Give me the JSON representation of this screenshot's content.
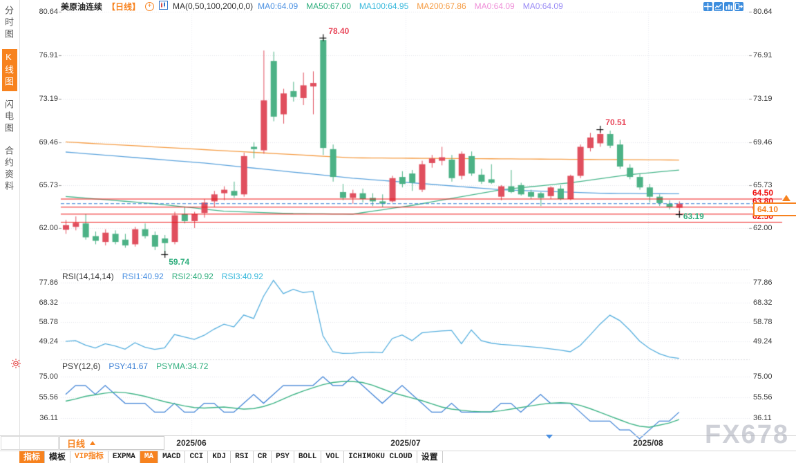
{
  "header": {
    "title": "美原油连续",
    "timeframe_label": "【日线】",
    "ma_formula": "MA(0,50,100,200,0,0)",
    "ma_items": [
      {
        "label": "MA0:64.09",
        "color": "#4a90e2"
      },
      {
        "label": "MA50:67.00",
        "color": "#2fae7d"
      },
      {
        "label": "MA100:64.95",
        "color": "#36b8dc"
      },
      {
        "label": "MA200:67.86",
        "color": "#f59b42"
      },
      {
        "label": "MA0:64.09",
        "color": "#ef8fd8"
      },
      {
        "label": "MA0:64.09",
        "color": "#9a8cf5"
      }
    ],
    "tool_icons": [
      "crosshair-icon",
      "overlay-chart-icon",
      "compare-chart-icon",
      "popout-icon"
    ]
  },
  "sidebar": {
    "items": [
      {
        "label": "分时图",
        "active": false
      },
      {
        "label": "K线图",
        "active": true
      },
      {
        "label": "闪电图",
        "active": false
      },
      {
        "label": "合约资料",
        "active": false
      }
    ]
  },
  "main_axis": {
    "ticks": [
      "80.64",
      "76.91",
      "73.19",
      "69.46",
      "65.73",
      "62.00"
    ]
  },
  "rsi_panel": {
    "title": "RSI(14,14,14)",
    "items": [
      {
        "label": "RSI1:40.92",
        "color": "#4a90e2"
      },
      {
        "label": "RSI2:40.92",
        "color": "#2fae7d"
      },
      {
        "label": "RSI3:40.92",
        "color": "#36b8dc"
      }
    ],
    "ticks": [
      "77.86",
      "68.32",
      "58.78",
      "49.24"
    ]
  },
  "psy_panel": {
    "title": "PSY(12,6)",
    "items": [
      {
        "label": "PSY:41.67",
        "color": "#3a7fd5"
      },
      {
        "label": "PSYMA:34.72",
        "color": "#2fae7d"
      }
    ],
    "ticks": [
      "75.00",
      "55.56",
      "36.11"
    ]
  },
  "price_labels": {
    "levels": [
      "64.50",
      "63.80",
      "63.20",
      "62.50"
    ],
    "current": "64.10"
  },
  "xaxis": {
    "timeframe": "日线",
    "months": [
      "2025/06",
      "2025/07",
      "2025/08"
    ]
  },
  "tabs": [
    {
      "label": "指标",
      "active": true,
      "vip": false
    },
    {
      "label": "模板",
      "active": false,
      "vip": false
    },
    {
      "label": "VIP指标",
      "active": false,
      "vip": true
    },
    {
      "label": "EXPMA",
      "active": false,
      "vip": false
    },
    {
      "label": "MA",
      "active": true,
      "vip": false
    },
    {
      "label": "MACD",
      "active": false,
      "vip": false
    },
    {
      "label": "CCI",
      "active": false,
      "vip": false
    },
    {
      "label": "KDJ",
      "active": false,
      "vip": false
    },
    {
      "label": "RSI",
      "active": false,
      "vip": false
    },
    {
      "label": "CR",
      "active": false,
      "vip": false
    },
    {
      "label": "PSY",
      "active": false,
      "vip": false
    },
    {
      "label": "BOLL",
      "active": false,
      "vip": false
    },
    {
      "label": "VOL",
      "active": false,
      "vip": false
    },
    {
      "label": "ICHIMOKU CLOUD",
      "active": false,
      "vip": false
    },
    {
      "label": "设置",
      "active": false,
      "vip": false
    }
  ],
  "watermark": "FX678",
  "chart_data": {
    "type": "candlestick",
    "symbol": "美原油连续",
    "period": "日线",
    "up_color": "#e04f5e",
    "down_color": "#4cb286",
    "price_ticks": [
      80.64,
      76.91,
      73.19,
      69.46,
      65.73,
      62.0
    ],
    "support_resistance": [
      64.5,
      63.8,
      63.2,
      62.5
    ],
    "current_price": 64.1,
    "candles": [
      [
        61.85,
        62.7,
        61.5,
        62.25
      ],
      [
        62.1,
        63.0,
        61.8,
        62.45
      ],
      [
        62.4,
        63.2,
        61.0,
        61.2
      ],
      [
        61.3,
        61.7,
        60.6,
        60.9
      ],
      [
        60.8,
        61.9,
        60.5,
        61.6
      ],
      [
        61.5,
        61.8,
        60.6,
        60.8
      ],
      [
        61.0,
        61.5,
        60.3,
        60.5
      ],
      [
        60.6,
        62.1,
        60.4,
        61.9
      ],
      [
        61.9,
        62.4,
        61.1,
        61.3
      ],
      [
        61.4,
        61.7,
        60.1,
        60.4
      ],
      [
        61.1,
        61.4,
        59.74,
        60.7
      ],
      [
        60.8,
        63.4,
        60.6,
        63.1
      ],
      [
        63.2,
        63.8,
        62.4,
        62.6
      ],
      [
        62.6,
        63.4,
        62.0,
        63.2
      ],
      [
        63.3,
        64.5,
        62.9,
        64.2
      ],
      [
        64.3,
        65.2,
        63.8,
        64.9
      ],
      [
        65.0,
        65.6,
        64.4,
        65.3
      ],
      [
        65.2,
        66.0,
        64.6,
        64.8
      ],
      [
        64.9,
        68.5,
        64.7,
        68.2
      ],
      [
        69.0,
        69.4,
        68.0,
        68.8
      ],
      [
        68.7,
        77.3,
        68.4,
        73.0
      ],
      [
        76.4,
        77.2,
        71.2,
        71.6
      ],
      [
        71.8,
        74.0,
        71.0,
        73.6
      ],
      [
        73.8,
        74.6,
        72.9,
        73.3
      ],
      [
        73.2,
        75.4,
        72.6,
        74.3
      ],
      [
        74.2,
        75.5,
        71.8,
        74.5
      ],
      [
        78.2,
        78.4,
        68.3,
        68.9
      ],
      [
        68.8,
        69.2,
        66.0,
        66.4
      ],
      [
        65.1,
        65.8,
        64.4,
        64.6
      ],
      [
        64.6,
        65.3,
        64.1,
        65.0
      ],
      [
        65.0,
        65.4,
        64.2,
        64.5
      ],
      [
        64.6,
        65.0,
        63.9,
        64.3
      ],
      [
        64.3,
        64.9,
        63.8,
        64.1
      ],
      [
        64.3,
        66.5,
        64.2,
        66.3
      ],
      [
        66.4,
        66.9,
        65.5,
        65.8
      ],
      [
        66.7,
        67.0,
        65.2,
        65.9
      ],
      [
        65.3,
        67.8,
        65.1,
        67.5
      ],
      [
        67.6,
        68.3,
        67.2,
        68.0
      ],
      [
        67.8,
        69.0,
        67.4,
        68.1
      ],
      [
        67.9,
        68.3,
        66.0,
        66.3
      ],
      [
        66.5,
        68.6,
        66.2,
        68.4
      ],
      [
        68.2,
        68.6,
        66.5,
        66.7
      ],
      [
        66.6,
        67.1,
        65.8,
        66.0
      ],
      [
        66.2,
        67.5,
        65.8,
        65.9
      ],
      [
        64.7,
        65.7,
        64.4,
        65.6
      ],
      [
        65.6,
        67.0,
        65.0,
        65.1
      ],
      [
        65.7,
        65.9,
        64.8,
        64.9
      ],
      [
        65.1,
        65.3,
        64.5,
        64.7
      ],
      [
        65.0,
        65.1,
        63.9,
        64.6
      ],
      [
        64.75,
        65.6,
        64.5,
        65.5
      ],
      [
        65.4,
        65.7,
        64.4,
        64.5
      ],
      [
        64.5,
        66.6,
        64.4,
        66.5
      ],
      [
        66.5,
        69.2,
        66.3,
        69.0
      ],
      [
        68.9,
        70.2,
        68.6,
        69.8
      ],
      [
        69.3,
        70.51,
        69.0,
        70.1
      ],
      [
        70.1,
        70.4,
        68.9,
        69.1
      ],
      [
        69.2,
        69.6,
        67.1,
        67.3
      ],
      [
        67.2,
        67.5,
        66.2,
        66.4
      ],
      [
        66.4,
        66.7,
        65.3,
        65.5
      ],
      [
        65.5,
        65.8,
        64.2,
        64.7
      ],
      [
        64.7,
        64.9,
        63.9,
        64.15
      ],
      [
        64.1,
        64.4,
        63.6,
        63.8
      ],
      [
        63.75,
        64.3,
        63.19,
        64.1
      ]
    ],
    "ma_lines": [
      {
        "name": "MA50",
        "color": "#46b58a",
        "points": [
          [
            0,
            64.72
          ],
          [
            9,
            64.1
          ],
          [
            16,
            63.45
          ],
          [
            23,
            63.25
          ],
          [
            29,
            63.2
          ],
          [
            35,
            63.95
          ],
          [
            44,
            65.3
          ],
          [
            51,
            65.9
          ],
          [
            57,
            66.6
          ],
          [
            62,
            67.0
          ]
        ]
      },
      {
        "name": "MA100",
        "color": "#5aa2dc",
        "points": [
          [
            0,
            68.55
          ],
          [
            14,
            67.6
          ],
          [
            29,
            66.3
          ],
          [
            44,
            65.3
          ],
          [
            54,
            65.0
          ],
          [
            62,
            64.95
          ]
        ]
      },
      {
        "name": "MA200",
        "color": "#f59b42",
        "points": [
          [
            0,
            69.42
          ],
          [
            29,
            68.05
          ],
          [
            62,
            67.86
          ]
        ]
      }
    ],
    "annotations": [
      {
        "text": "78.40",
        "bar": 26,
        "price": 78.4,
        "color": "#e8475a",
        "place": "above"
      },
      {
        "text": "70.51",
        "bar": 54,
        "price": 70.51,
        "color": "#e8475a",
        "place": "above"
      },
      {
        "text": "59.74",
        "bar": 10,
        "price": 59.74,
        "color": "#2fae7d",
        "place": "below"
      },
      {
        "text": "63.19",
        "bar": 62,
        "price": 63.19,
        "color": "#2fae7d",
        "place": "right"
      }
    ],
    "rsi": {
      "ticks": [
        77.86,
        68.32,
        58.78,
        49.24
      ],
      "color": "#54aede",
      "values": [
        49.3,
        49.6,
        47.4,
        46.0,
        48.1,
        47.0,
        45.4,
        48.6,
        46.4,
        45.3,
        46.1,
        52.6,
        51.4,
        50.2,
        52.2,
        55.2,
        57.6,
        56.3,
        62.1,
        60.4,
        71.2,
        79.0,
        72.5,
        74.6,
        73.0,
        73.6,
        52.0,
        44.2,
        43.4,
        43.5,
        43.8,
        44.0,
        43.7,
        50.6,
        52.4,
        49.6,
        53.4,
        53.9,
        54.3,
        54.6,
        48.1,
        54.8,
        49.6,
        48.4,
        47.8,
        47.4,
        47.0,
        46.6,
        46.2,
        45.6,
        45.0,
        44.2,
        47.2,
        52.3,
        57.6,
        62.0,
        59.4,
        54.8,
        49.4,
        45.8,
        43.2,
        41.6,
        40.92
      ]
    },
    "psy": {
      "ticks": [
        75.0,
        55.56,
        36.11
      ],
      "psy_color": "#3a7fd5",
      "psyma_color": "#3cb385",
      "psy": [
        58.3,
        66.7,
        66.7,
        58.3,
        66.7,
        58.3,
        50,
        50,
        50,
        41.7,
        41.7,
        50,
        41.7,
        41.7,
        50,
        50,
        41.7,
        41.7,
        50,
        58.3,
        50,
        58.3,
        66.7,
        66.7,
        66.7,
        66.7,
        75,
        66.7,
        66.7,
        75,
        66.7,
        58.3,
        50,
        58.3,
        66.7,
        58.3,
        50,
        41.7,
        41.7,
        50,
        41.7,
        41.7,
        41.7,
        41.7,
        50,
        50,
        41.7,
        50,
        58.3,
        50,
        50,
        50,
        41.7,
        33.3,
        33.3,
        33.3,
        25,
        25,
        16.7,
        25,
        33.3,
        33.3,
        41.67
      ],
      "psyma": [
        52,
        54,
        56.5,
        58,
        59.5,
        60.5,
        60,
        58.5,
        56.5,
        54,
        51.5,
        49.5,
        47.5,
        46,
        45.5,
        46,
        46.5,
        45.5,
        44.5,
        45,
        47,
        50,
        54,
        58,
        61.5,
        64.5,
        67.5,
        69.5,
        70.5,
        70.5,
        69.5,
        67,
        63.5,
        60,
        57.5,
        55,
        52.5,
        49.5,
        46.5,
        44.5,
        43.5,
        42.5,
        42,
        42,
        43,
        44.5,
        46,
        47.5,
        49,
        50,
        50.5,
        50,
        48,
        45,
        41.5,
        38,
        34.5,
        31,
        28.5,
        27.5,
        29.5,
        31.5,
        34.72
      ]
    }
  }
}
